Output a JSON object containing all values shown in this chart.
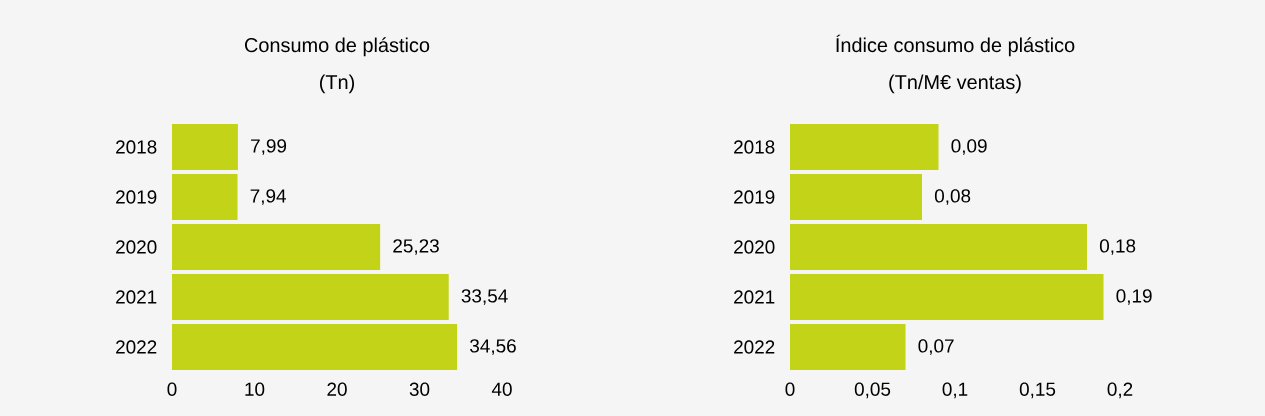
{
  "chart_data": [
    {
      "type": "bar",
      "orientation": "horizontal",
      "title": "Consumo de plástico",
      "subtitle": "(Tn)",
      "categories": [
        "2018",
        "2019",
        "2020",
        "2021",
        "2022"
      ],
      "values": [
        7.99,
        7.94,
        25.23,
        33.54,
        34.56
      ],
      "value_labels": [
        "7,99",
        "7,94",
        "25,23",
        "33,54",
        "34,56"
      ],
      "color": "#c2d318",
      "xlim": [
        0,
        40
      ],
      "xticks": [
        0,
        10,
        20,
        30,
        40
      ],
      "grid": false
    },
    {
      "type": "bar",
      "orientation": "horizontal",
      "title": "Índice consumo de plástico",
      "subtitle": "(Tn/M€ ventas)",
      "categories": [
        "2018",
        "2019",
        "2020",
        "2021",
        "2022"
      ],
      "values": [
        0.09,
        0.08,
        0.18,
        0.19,
        0.07
      ],
      "value_labels": [
        "0,09",
        "0,08",
        "0,18",
        "0,19",
        "0,07"
      ],
      "color": "#c2d318",
      "xlim": [
        0,
        0.2
      ],
      "xticks": [
        0,
        {
          "value": 0.05,
          "label": "0,05"
        },
        {
          "value": 0.1,
          "label": "0,1"
        },
        {
          "value": 0.15,
          "label": "0,15"
        },
        {
          "value": 0.2,
          "label": "0,2"
        }
      ],
      "grid": false
    }
  ]
}
